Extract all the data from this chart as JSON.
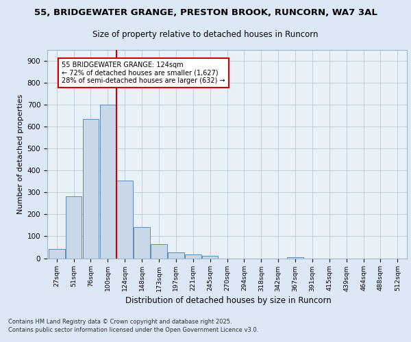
{
  "title1": "55, BRIDGEWATER GRANGE, PRESTON BROOK, RUNCORN, WA7 3AL",
  "title2": "Size of property relative to detached houses in Runcorn",
  "xlabel": "Distribution of detached houses by size in Runcorn",
  "ylabel": "Number of detached properties",
  "bar_labels": [
    "27sqm",
    "51sqm",
    "76sqm",
    "100sqm",
    "124sqm",
    "148sqm",
    "173sqm",
    "197sqm",
    "221sqm",
    "245sqm",
    "270sqm",
    "294sqm",
    "318sqm",
    "342sqm",
    "367sqm",
    "391sqm",
    "415sqm",
    "439sqm",
    "464sqm",
    "488sqm",
    "512sqm"
  ],
  "bar_values": [
    42,
    283,
    635,
    700,
    352,
    143,
    65,
    28,
    16,
    10,
    0,
    0,
    0,
    0,
    5,
    0,
    0,
    0,
    0,
    0,
    0
  ],
  "bar_color": "#c8d8e8",
  "bar_edge_color": "#5a8abf",
  "vline_color": "#cc0000",
  "annotation_title": "55 BRIDGEWATER GRANGE: 124sqm",
  "annotation_line2": "← 72% of detached houses are smaller (1,627)",
  "annotation_line3": "28% of semi-detached houses are larger (632) →",
  "annotation_box_color": "#cc0000",
  "ylim": [
    0,
    950
  ],
  "yticks": [
    0,
    100,
    200,
    300,
    400,
    500,
    600,
    700,
    800,
    900
  ],
  "footer1": "Contains HM Land Registry data © Crown copyright and database right 2025.",
  "footer2": "Contains public sector information licensed under the Open Government Licence v3.0.",
  "bg_color": "#dce8f5",
  "plot_bg_color": "#e8f0f8",
  "title_bg_color": "#ffffff"
}
